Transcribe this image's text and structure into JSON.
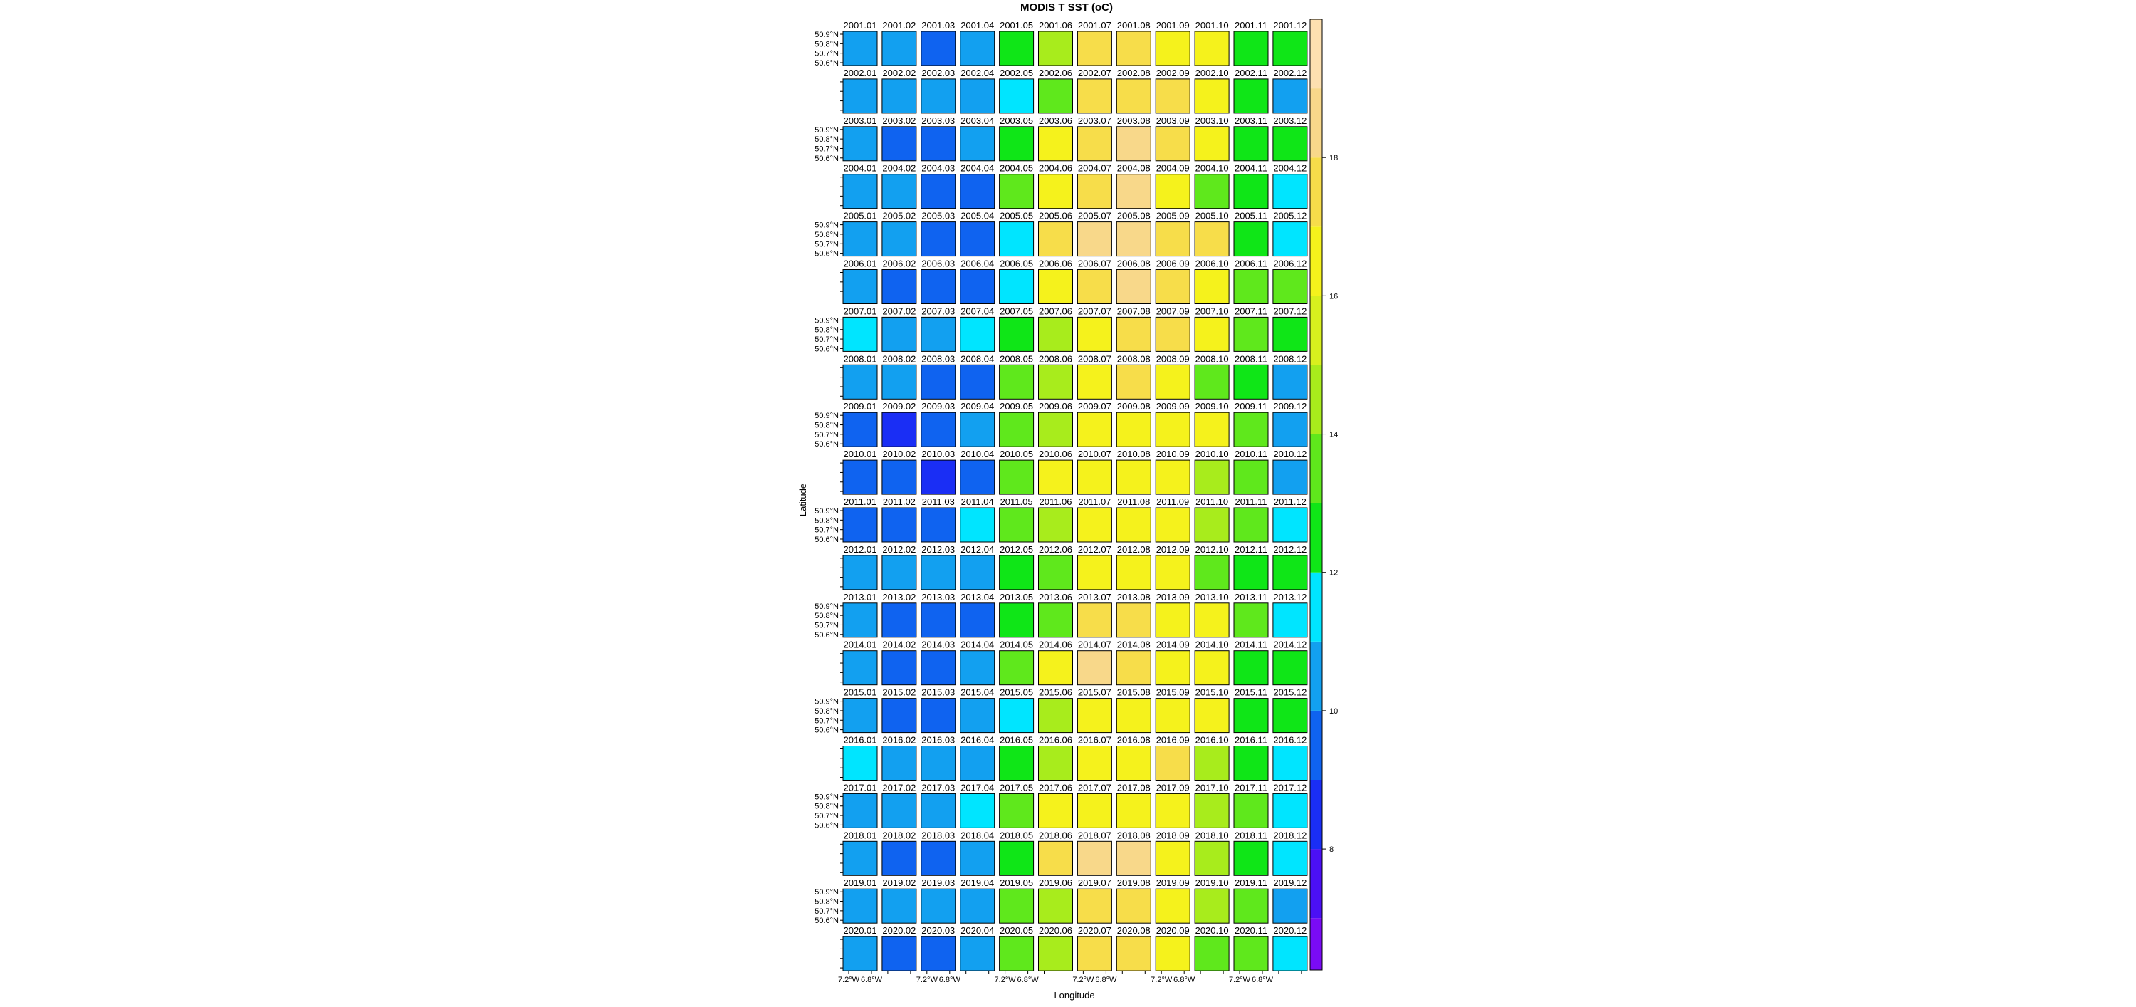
{
  "chart_data": {
    "type": "panel_grid",
    "title": "MODIS T SST (oC)",
    "xlabel": "Longitude",
    "ylabel": "Latitude",
    "xlim": [
      -7.3,
      -6.7
    ],
    "xticks": [
      {
        "value": -7.2,
        "label": "7.2°W"
      },
      {
        "value": -6.8,
        "label": "6.8°W"
      }
    ],
    "ylim": [
      50.57,
      50.93
    ],
    "yticks": [
      {
        "value": 50.9,
        "label": "50.9°N"
      },
      {
        "value": 50.8,
        "label": "50.8°N"
      },
      {
        "value": 50.7,
        "label": "50.7°N"
      },
      {
        "value": 50.6,
        "label": "50.6°N"
      }
    ],
    "zlim": [
      6.25,
      20
    ],
    "zticks": [
      8,
      10,
      12,
      14,
      16,
      18
    ],
    "breaks": [
      6.25,
      7,
      8,
      9,
      10,
      11,
      12,
      13,
      14,
      15,
      16,
      17,
      18,
      19,
      20
    ],
    "colors": [
      "#7a0bf5",
      "#4b10f5",
      "#1a2ef5",
      "#0f63f0",
      "#12a0f0",
      "#00e5ff",
      "#0fe617",
      "#5fe81c",
      "#a8ec1c",
      "#d8f01e",
      "#f5f21c",
      "#f7dd4a",
      "#f8d88a",
      "#fde0b0"
    ],
    "panels": [
      {
        "labels": [
          "2001.01",
          "2001.02",
          "2001.03",
          "2001.04",
          "2001.05",
          "2001.06",
          "2001.07",
          "2001.08",
          "2001.09",
          "2001.10",
          "2001.11",
          "2001.12"
        ],
        "values": [
          10.5,
          10.5,
          9.5,
          10.5,
          12.5,
          14.5,
          17.5,
          17.5,
          16.5,
          16.5,
          12.8,
          12.5
        ]
      },
      {
        "labels": [
          "2002.01",
          "2002.02",
          "2002.03",
          "2002.04",
          "2002.05",
          "2002.06",
          "2002.07",
          "2002.08",
          "2002.09",
          "2002.10",
          "2002.11",
          "2002.12"
        ],
        "values": [
          10.5,
          10.5,
          10.3,
          10.5,
          11.5,
          13.5,
          17.3,
          17.5,
          17.5,
          16.5,
          12.5,
          10.8
        ]
      },
      {
        "labels": [
          "2003.01",
          "2003.02",
          "2003.03",
          "2003.04",
          "2003.05",
          "2003.06",
          "2003.07",
          "2003.08",
          "2003.09",
          "2003.10",
          "2003.11",
          "2003.12"
        ],
        "values": [
          10.5,
          9.5,
          9.5,
          10.3,
          12.8,
          16.2,
          17.2,
          18.3,
          17.3,
          16.3,
          12.8,
          12.3
        ]
      },
      {
        "labels": [
          "2004.01",
          "2004.02",
          "2004.03",
          "2004.04",
          "2004.05",
          "2004.06",
          "2004.07",
          "2004.08",
          "2004.09",
          "2004.10",
          "2004.11",
          "2004.12"
        ],
        "values": [
          10.5,
          10.3,
          9.5,
          9.8,
          13.2,
          16.2,
          17.5,
          18.2,
          16.5,
          13.2,
          12.5,
          11.5
        ]
      },
      {
        "labels": [
          "2005.01",
          "2005.02",
          "2005.03",
          "2005.04",
          "2005.05",
          "2005.06",
          "2005.07",
          "2005.08",
          "2005.09",
          "2005.10",
          "2005.11",
          "2005.12"
        ],
        "values": [
          10.5,
          10.2,
          9.6,
          9.6,
          11.5,
          17.2,
          18.2,
          18.2,
          17.3,
          17.2,
          12.5,
          11.5
        ]
      },
      {
        "labels": [
          "2006.01",
          "2006.02",
          "2006.03",
          "2006.04",
          "2006.05",
          "2006.06",
          "2006.07",
          "2006.08",
          "2006.09",
          "2006.10",
          "2006.11",
          "2006.12"
        ],
        "values": [
          10.5,
          9.5,
          9.5,
          9.3,
          11.5,
          16.3,
          17.8,
          18.2,
          17.5,
          16.3,
          13.0,
          13.7
        ]
      },
      {
        "labels": [
          "2007.01",
          "2007.02",
          "2007.03",
          "2007.04",
          "2007.05",
          "2007.06",
          "2007.07",
          "2007.08",
          "2007.09",
          "2007.10",
          "2007.11",
          "2007.12"
        ],
        "values": [
          11.5,
          10.5,
          10.5,
          11.3,
          12.5,
          14.5,
          16.5,
          17.3,
          17.2,
          16.3,
          13.3,
          12.7
        ]
      },
      {
        "labels": [
          "2008.01",
          "2008.02",
          "2008.03",
          "2008.04",
          "2008.05",
          "2008.06",
          "2008.07",
          "2008.08",
          "2008.09",
          "2008.10",
          "2008.11",
          "2008.12"
        ],
        "values": [
          10.5,
          10.3,
          9.8,
          9.6,
          13.2,
          14.5,
          16.5,
          17.3,
          16.3,
          13.5,
          12.7,
          10.5
        ]
      },
      {
        "labels": [
          "2009.01",
          "2009.02",
          "2009.03",
          "2009.04",
          "2009.05",
          "2009.06",
          "2009.07",
          "2009.08",
          "2009.09",
          "2009.10",
          "2009.11",
          "2009.12"
        ],
        "values": [
          9.5,
          8.5,
          9.5,
          10.5,
          13.3,
          14.5,
          16.3,
          16.3,
          16.2,
          16.1,
          13.0,
          10.5
        ]
      },
      {
        "labels": [
          "2010.01",
          "2010.02",
          "2010.03",
          "2010.04",
          "2010.05",
          "2010.06",
          "2010.07",
          "2010.08",
          "2010.09",
          "2010.10",
          "2010.11",
          "2010.12"
        ],
        "values": [
          9.3,
          9.0,
          8.6,
          9.6,
          13.5,
          16.3,
          16.4,
          16.5,
          16.5,
          14.5,
          13.3,
          10.3
        ]
      },
      {
        "labels": [
          "2011.01",
          "2011.02",
          "2011.03",
          "2011.04",
          "2011.05",
          "2011.06",
          "2011.07",
          "2011.08",
          "2011.09",
          "2011.10",
          "2011.11",
          "2011.12"
        ],
        "values": [
          9.5,
          9.3,
          9.0,
          11.0,
          13.2,
          14.3,
          16.3,
          16.3,
          16.0,
          14.6,
          13.0,
          11.5
        ]
      },
      {
        "labels": [
          "2012.01",
          "2012.02",
          "2012.03",
          "2012.04",
          "2012.05",
          "2012.06",
          "2012.07",
          "2012.08",
          "2012.09",
          "2012.10",
          "2012.11",
          "2012.12"
        ],
        "values": [
          10.8,
          10.3,
          10.3,
          10.3,
          12.5,
          13.5,
          16.3,
          16.5,
          16.3,
          13.6,
          12.7,
          12.3
        ]
      },
      {
        "labels": [
          "2013.01",
          "2013.02",
          "2013.03",
          "2013.04",
          "2013.05",
          "2013.06",
          "2013.07",
          "2013.08",
          "2013.09",
          "2013.10",
          "2013.11",
          "2013.12"
        ],
        "values": [
          10.5,
          9.7,
          9.4,
          9.4,
          12.9,
          13.5,
          17.3,
          17.0,
          16.3,
          16.2,
          13.0,
          11.5
        ]
      },
      {
        "labels": [
          "2014.01",
          "2014.02",
          "2014.03",
          "2014.04",
          "2014.05",
          "2014.06",
          "2014.07",
          "2014.08",
          "2014.09",
          "2014.10",
          "2014.11",
          "2014.12"
        ],
        "values": [
          10.5,
          9.8,
          9.8,
          10.0,
          13.0,
          16.3,
          18.3,
          17.4,
          16.5,
          16.3,
          12.6,
          12.3
        ]
      },
      {
        "labels": [
          "2015.01",
          "2015.02",
          "2015.03",
          "2015.04",
          "2015.05",
          "2015.06",
          "2015.07",
          "2015.08",
          "2015.09",
          "2015.10",
          "2015.11",
          "2015.12"
        ],
        "values": [
          10.3,
          9.7,
          9.7,
          10.0,
          11.5,
          14.5,
          16.5,
          16.5,
          16.2,
          16.0,
          12.7,
          12.5
        ]
      },
      {
        "labels": [
          "2016.01",
          "2016.02",
          "2016.03",
          "2016.04",
          "2016.05",
          "2016.06",
          "2016.07",
          "2016.08",
          "2016.09",
          "2016.10",
          "2016.11",
          "2016.12"
        ],
        "values": [
          11.2,
          10.5,
          10.2,
          10.3,
          12.8,
          14.4,
          16.5,
          16.5,
          17.0,
          14.5,
          12.7,
          11.5
        ]
      },
      {
        "labels": [
          "2017.01",
          "2017.02",
          "2017.03",
          "2017.04",
          "2017.05",
          "2017.06",
          "2017.07",
          "2017.08",
          "2017.09",
          "2017.10",
          "2017.11",
          "2017.12"
        ],
        "values": [
          10.5,
          10.5,
          10.5,
          11.3,
          13.0,
          16.2,
          16.5,
          16.4,
          16.3,
          14.6,
          13.0,
          11.3
        ]
      },
      {
        "labels": [
          "2018.01",
          "2018.02",
          "2018.03",
          "2018.04",
          "2018.05",
          "2018.06",
          "2018.07",
          "2018.08",
          "2018.09",
          "2018.10",
          "2018.11",
          "2018.12"
        ],
        "values": [
          10.5,
          9.8,
          9.8,
          10.0,
          12.8,
          17.3,
          18.3,
          18.1,
          16.5,
          14.5,
          12.8,
          11.5
        ]
      },
      {
        "labels": [
          "2019.01",
          "2019.02",
          "2019.03",
          "2019.04",
          "2019.05",
          "2019.06",
          "2019.07",
          "2019.08",
          "2019.09",
          "2019.10",
          "2019.11",
          "2019.12"
        ],
        "values": [
          10.7,
          10.5,
          10.5,
          10.5,
          13.3,
          14.7,
          17.3,
          17.3,
          16.4,
          14.5,
          13.4,
          10.8
        ]
      },
      {
        "labels": [
          "2020.01",
          "2020.02",
          "2020.03",
          "2020.04",
          "2020.05",
          "2020.06",
          "2020.07",
          "2020.08",
          "2020.09",
          "2020.10",
          "2020.11",
          "2020.12"
        ],
        "values": [
          10.5,
          9.8,
          9.6,
          10.0,
          13.4,
          14.6,
          17.3,
          17.4,
          16.4,
          13.5,
          13.0,
          11.5
        ]
      }
    ]
  }
}
